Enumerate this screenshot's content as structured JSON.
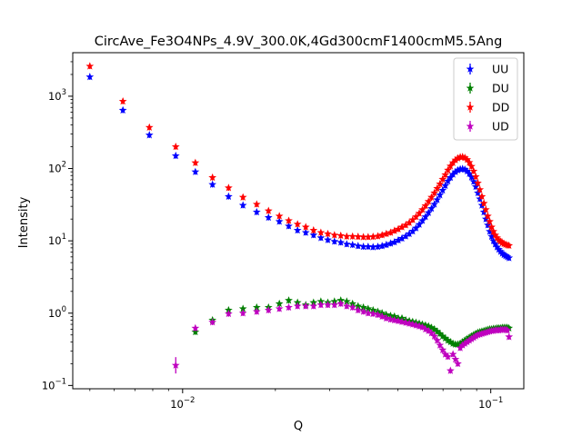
{
  "chart_data": {
    "type": "scatter",
    "title": "CircAve_Fe3O4NPs_4.9V_300.0K,4Gd300cmF1400cmM5.5Ang",
    "xlabel": "Q",
    "ylabel": "Intensity",
    "xscale": "log",
    "yscale": "log",
    "xlim": [
      0.0044,
      0.128
    ],
    "ylim": [
      0.09,
      4000
    ],
    "grid": false,
    "legend_position": "top-right",
    "x_ticks": [
      {
        "value": 0.01,
        "base": "10",
        "exp": "−2"
      },
      {
        "value": 0.1,
        "base": "10",
        "exp": "−1"
      }
    ],
    "y_ticks": [
      {
        "value": 0.1,
        "base": "10",
        "exp": "−1"
      },
      {
        "value": 1,
        "base": "10",
        "exp": "0"
      },
      {
        "value": 10,
        "base": "10",
        "exp": "1"
      },
      {
        "value": 100,
        "base": "10",
        "exp": "2"
      },
      {
        "value": 1000,
        "base": "10",
        "exp": "3"
      }
    ],
    "series": [
      {
        "name": "UU",
        "color": "#0000ff",
        "marker": "star",
        "points": [
          [
            0.005,
            1850
          ],
          [
            0.0064,
            640
          ],
          [
            0.0078,
            290
          ],
          [
            0.0095,
            150
          ],
          [
            0.011,
            90
          ],
          [
            0.0125,
            60
          ],
          [
            0.0141,
            41
          ],
          [
            0.0157,
            31
          ],
          [
            0.0174,
            25
          ],
          [
            0.019,
            21
          ],
          [
            0.0206,
            18.5
          ],
          [
            0.0221,
            16
          ],
          [
            0.0236,
            14
          ],
          [
            0.0251,
            13
          ],
          [
            0.0266,
            12
          ],
          [
            0.0281,
            11
          ],
          [
            0.0296,
            10.3
          ],
          [
            0.0311,
            9.8
          ],
          [
            0.0326,
            9.5
          ],
          [
            0.0341,
            9.0
          ],
          [
            0.0356,
            8.8
          ],
          [
            0.0371,
            8.5
          ],
          [
            0.0386,
            8.3
          ],
          [
            0.04,
            8.3
          ],
          [
            0.0415,
            8.2
          ],
          [
            0.043,
            8.3
          ],
          [
            0.0444,
            8.5
          ],
          [
            0.0458,
            8.8
          ],
          [
            0.0473,
            9.2
          ],
          [
            0.0487,
            9.6
          ],
          [
            0.0501,
            10.2
          ],
          [
            0.0515,
            10.8
          ],
          [
            0.053,
            11.6
          ],
          [
            0.0544,
            12.5
          ],
          [
            0.0558,
            13.6
          ],
          [
            0.0572,
            15
          ],
          [
            0.0586,
            16.8
          ],
          [
            0.06,
            19
          ],
          [
            0.0614,
            21.5
          ],
          [
            0.0628,
            24.5
          ],
          [
            0.0642,
            28
          ],
          [
            0.0656,
            32
          ],
          [
            0.067,
            37
          ],
          [
            0.0684,
            43
          ],
          [
            0.0698,
            50
          ],
          [
            0.0712,
            58
          ],
          [
            0.0726,
            67
          ],
          [
            0.074,
            75
          ],
          [
            0.0754,
            83
          ],
          [
            0.0768,
            90
          ],
          [
            0.0782,
            95
          ],
          [
            0.0796,
            98
          ],
          [
            0.081,
            99
          ],
          [
            0.0824,
            97
          ],
          [
            0.0838,
            92
          ],
          [
            0.0852,
            85
          ],
          [
            0.0866,
            76
          ],
          [
            0.088,
            66
          ],
          [
            0.0894,
            56
          ],
          [
            0.0908,
            46
          ],
          [
            0.0922,
            38
          ],
          [
            0.0936,
            31
          ],
          [
            0.095,
            25
          ],
          [
            0.0964,
            20
          ],
          [
            0.0978,
            16.5
          ],
          [
            0.0992,
            13.5
          ],
          [
            0.1006,
            11.5
          ],
          [
            0.102,
            10
          ],
          [
            0.1034,
            9
          ],
          [
            0.1048,
            8.2
          ],
          [
            0.1062,
            7.6
          ],
          [
            0.1076,
            7.1
          ],
          [
            0.109,
            6.7
          ],
          [
            0.1104,
            6.4
          ],
          [
            0.1118,
            6.2
          ],
          [
            0.1132,
            6.0
          ],
          [
            0.1146,
            5.8
          ]
        ]
      },
      {
        "name": "DU",
        "color": "#008000",
        "marker": "star",
        "points": [
          [
            0.011,
            0.55
          ],
          [
            0.0125,
            0.8
          ],
          [
            0.0141,
            1.1
          ],
          [
            0.0157,
            1.15
          ],
          [
            0.0174,
            1.2
          ],
          [
            0.019,
            1.2
          ],
          [
            0.0206,
            1.35
          ],
          [
            0.0221,
            1.5
          ],
          [
            0.0236,
            1.4
          ],
          [
            0.0251,
            1.3
          ],
          [
            0.0266,
            1.4
          ],
          [
            0.0281,
            1.45
          ],
          [
            0.0296,
            1.4
          ],
          [
            0.0311,
            1.45
          ],
          [
            0.0326,
            1.5
          ],
          [
            0.0341,
            1.45
          ],
          [
            0.0356,
            1.35
          ],
          [
            0.0371,
            1.25
          ],
          [
            0.0386,
            1.2
          ],
          [
            0.04,
            1.15
          ],
          [
            0.0415,
            1.1
          ],
          [
            0.043,
            1.05
          ],
          [
            0.0444,
            1.0
          ],
          [
            0.0458,
            0.95
          ],
          [
            0.0473,
            0.92
          ],
          [
            0.0487,
            0.9
          ],
          [
            0.0501,
            0.85
          ],
          [
            0.0515,
            0.85
          ],
          [
            0.053,
            0.8
          ],
          [
            0.0544,
            0.78
          ],
          [
            0.0558,
            0.76
          ],
          [
            0.0572,
            0.74
          ],
          [
            0.0586,
            0.72
          ],
          [
            0.06,
            0.7
          ],
          [
            0.0614,
            0.68
          ],
          [
            0.0628,
            0.66
          ],
          [
            0.0642,
            0.63
          ],
          [
            0.0656,
            0.6
          ],
          [
            0.067,
            0.56
          ],
          [
            0.0684,
            0.52
          ],
          [
            0.0698,
            0.48
          ],
          [
            0.0712,
            0.45
          ],
          [
            0.0726,
            0.42
          ],
          [
            0.074,
            0.4
          ],
          [
            0.0754,
            0.38
          ],
          [
            0.0768,
            0.37
          ],
          [
            0.0782,
            0.37
          ],
          [
            0.0796,
            0.38
          ],
          [
            0.081,
            0.4
          ],
          [
            0.0824,
            0.42
          ],
          [
            0.0838,
            0.44
          ],
          [
            0.0852,
            0.46
          ],
          [
            0.0866,
            0.48
          ],
          [
            0.088,
            0.5
          ],
          [
            0.0894,
            0.52
          ],
          [
            0.0908,
            0.54
          ],
          [
            0.0922,
            0.55
          ],
          [
            0.0936,
            0.56
          ],
          [
            0.095,
            0.57
          ],
          [
            0.0964,
            0.58
          ],
          [
            0.0978,
            0.59
          ],
          [
            0.0992,
            0.6
          ],
          [
            0.1006,
            0.6
          ],
          [
            0.102,
            0.61
          ],
          [
            0.1034,
            0.61
          ],
          [
            0.1048,
            0.62
          ],
          [
            0.1062,
            0.62
          ],
          [
            0.1076,
            0.62
          ],
          [
            0.109,
            0.63
          ],
          [
            0.1104,
            0.63
          ],
          [
            0.1118,
            0.63
          ],
          [
            0.1132,
            0.63
          ],
          [
            0.1146,
            0.62
          ]
        ]
      },
      {
        "name": "DD",
        "color": "#ff0000",
        "marker": "star",
        "points": [
          [
            0.005,
            2600
          ],
          [
            0.0064,
            850
          ],
          [
            0.0078,
            370
          ],
          [
            0.0095,
            200
          ],
          [
            0.011,
            120
          ],
          [
            0.0125,
            75
          ],
          [
            0.0141,
            54
          ],
          [
            0.0157,
            40
          ],
          [
            0.0174,
            32
          ],
          [
            0.019,
            26
          ],
          [
            0.0206,
            22
          ],
          [
            0.0221,
            19
          ],
          [
            0.0236,
            17
          ],
          [
            0.0251,
            15.5
          ],
          [
            0.0266,
            14
          ],
          [
            0.0281,
            13
          ],
          [
            0.0296,
            12.5
          ],
          [
            0.0311,
            12
          ],
          [
            0.0326,
            11.8
          ],
          [
            0.0341,
            11.5
          ],
          [
            0.0356,
            11.5
          ],
          [
            0.0371,
            11.4
          ],
          [
            0.0386,
            11.3
          ],
          [
            0.04,
            11.3
          ],
          [
            0.0415,
            11.4
          ],
          [
            0.043,
            11.6
          ],
          [
            0.0444,
            12
          ],
          [
            0.0458,
            12.5
          ],
          [
            0.0473,
            13
          ],
          [
            0.0487,
            13.8
          ],
          [
            0.0501,
            14.5
          ],
          [
            0.0515,
            15.5
          ],
          [
            0.053,
            16.5
          ],
          [
            0.0544,
            17.8
          ],
          [
            0.0558,
            19.5
          ],
          [
            0.0572,
            21.5
          ],
          [
            0.0586,
            24
          ],
          [
            0.06,
            27
          ],
          [
            0.0614,
            30.5
          ],
          [
            0.0628,
            35
          ],
          [
            0.0642,
            40
          ],
          [
            0.0656,
            46
          ],
          [
            0.067,
            53
          ],
          [
            0.0684,
            61
          ],
          [
            0.0698,
            71
          ],
          [
            0.0712,
            82
          ],
          [
            0.0726,
            95
          ],
          [
            0.074,
            108
          ],
          [
            0.0754,
            120
          ],
          [
            0.0768,
            131
          ],
          [
            0.0782,
            139
          ],
          [
            0.0796,
            144
          ],
          [
            0.081,
            145
          ],
          [
            0.0824,
            141
          ],
          [
            0.0838,
            133
          ],
          [
            0.0852,
            121
          ],
          [
            0.0866,
            107
          ],
          [
            0.088,
            92
          ],
          [
            0.0894,
            77
          ],
          [
            0.0908,
            63
          ],
          [
            0.0922,
            51
          ],
          [
            0.0936,
            41
          ],
          [
            0.095,
            33
          ],
          [
            0.0964,
            27
          ],
          [
            0.0978,
            22
          ],
          [
            0.0992,
            18.5
          ],
          [
            0.1006,
            15.5
          ],
          [
            0.102,
            13.5
          ],
          [
            0.1034,
            12
          ],
          [
            0.1048,
            11
          ],
          [
            0.1062,
            10.3
          ],
          [
            0.1076,
            9.8
          ],
          [
            0.109,
            9.4
          ],
          [
            0.1104,
            9.1
          ],
          [
            0.1118,
            8.9
          ],
          [
            0.1132,
            8.7
          ],
          [
            0.1146,
            8.6
          ]
        ]
      },
      {
        "name": "UD",
        "color": "#bf00bf",
        "marker": "star",
        "points": [
          [
            0.0095,
            0.19
          ],
          [
            0.011,
            0.62
          ],
          [
            0.0125,
            0.75
          ],
          [
            0.0141,
            0.98
          ],
          [
            0.0157,
            1.0
          ],
          [
            0.0174,
            1.05
          ],
          [
            0.019,
            1.1
          ],
          [
            0.0206,
            1.15
          ],
          [
            0.0221,
            1.2
          ],
          [
            0.0236,
            1.25
          ],
          [
            0.0251,
            1.25
          ],
          [
            0.0266,
            1.25
          ],
          [
            0.0281,
            1.3
          ],
          [
            0.0296,
            1.3
          ],
          [
            0.0311,
            1.3
          ],
          [
            0.0326,
            1.35
          ],
          [
            0.0341,
            1.25
          ],
          [
            0.0356,
            1.2
          ],
          [
            0.0371,
            1.1
          ],
          [
            0.0386,
            1.05
          ],
          [
            0.04,
            1.0
          ],
          [
            0.0415,
            0.98
          ],
          [
            0.043,
            0.95
          ],
          [
            0.0444,
            0.9
          ],
          [
            0.0458,
            0.85
          ],
          [
            0.0473,
            0.82
          ],
          [
            0.0487,
            0.8
          ],
          [
            0.0501,
            0.78
          ],
          [
            0.0515,
            0.76
          ],
          [
            0.053,
            0.74
          ],
          [
            0.0544,
            0.72
          ],
          [
            0.0558,
            0.7
          ],
          [
            0.0572,
            0.68
          ],
          [
            0.0586,
            0.66
          ],
          [
            0.06,
            0.64
          ],
          [
            0.0614,
            0.6
          ],
          [
            0.0628,
            0.57
          ],
          [
            0.0642,
            0.53
          ],
          [
            0.0656,
            0.48
          ],
          [
            0.067,
            0.42
          ],
          [
            0.0684,
            0.36
          ],
          [
            0.0698,
            0.31
          ],
          [
            0.0712,
            0.27
          ],
          [
            0.0726,
            0.25
          ],
          [
            0.074,
            0.16
          ],
          [
            0.0754,
            0.27
          ],
          [
            0.0768,
            0.23
          ],
          [
            0.0782,
            0.2
          ],
          [
            0.0796,
            0.33
          ],
          [
            0.081,
            0.36
          ],
          [
            0.0824,
            0.38
          ],
          [
            0.0838,
            0.4
          ],
          [
            0.0852,
            0.42
          ],
          [
            0.0866,
            0.44
          ],
          [
            0.088,
            0.46
          ],
          [
            0.0894,
            0.48
          ],
          [
            0.0908,
            0.5
          ],
          [
            0.0922,
            0.51
          ],
          [
            0.0936,
            0.52
          ],
          [
            0.095,
            0.53
          ],
          [
            0.0964,
            0.54
          ],
          [
            0.0978,
            0.55
          ],
          [
            0.0992,
            0.56
          ],
          [
            0.1006,
            0.57
          ],
          [
            0.102,
            0.57
          ],
          [
            0.1034,
            0.58
          ],
          [
            0.1048,
            0.58
          ],
          [
            0.1062,
            0.58
          ],
          [
            0.1076,
            0.59
          ],
          [
            0.109,
            0.59
          ],
          [
            0.1104,
            0.59
          ],
          [
            0.1118,
            0.59
          ],
          [
            0.1132,
            0.58
          ],
          [
            0.1146,
            0.47
          ]
        ]
      }
    ]
  }
}
